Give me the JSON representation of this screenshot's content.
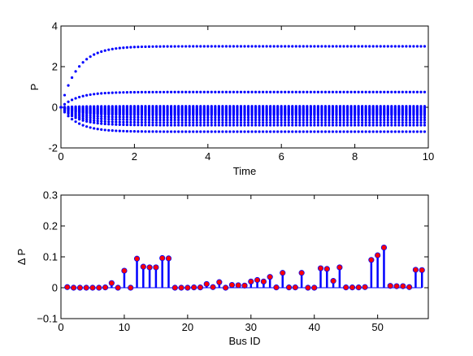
{
  "chart_data": [
    {
      "type": "scatter",
      "title": "",
      "xlabel": "Time",
      "ylabel": "P",
      "xlim": [
        0,
        10
      ],
      "ylim": [
        -2,
        4
      ],
      "xticks": [
        0,
        2,
        4,
        6,
        8,
        10
      ],
      "yticks": [
        -2,
        0,
        2,
        4
      ],
      "grid": false,
      "marker_color": "#0000ff",
      "time_samples": {
        "start": 0,
        "stop": 9.9,
        "step": 0.1
      },
      "tau": 0.45,
      "series": [
        {
          "final": 3.0
        },
        {
          "final": 0.75
        },
        {
          "final": 0.05
        },
        {
          "final": -0.02
        },
        {
          "final": -0.08
        },
        {
          "final": -0.13
        },
        {
          "final": -0.18
        },
        {
          "final": -0.23
        },
        {
          "final": -0.28
        },
        {
          "final": -0.33
        },
        {
          "final": -0.38
        },
        {
          "final": -0.5
        },
        {
          "final": -0.62
        },
        {
          "final": -0.75
        },
        {
          "final": -0.88
        },
        {
          "final": -1.2
        }
      ]
    },
    {
      "type": "stem",
      "title": "",
      "xlabel": "Bus ID",
      "ylabel": "Δ P",
      "xlim": [
        0,
        58
      ],
      "ylim": [
        -0.1,
        0.3
      ],
      "xticks": [
        0,
        10,
        20,
        30,
        40,
        50
      ],
      "yticks": [
        -0.1,
        0,
        0.1,
        0.2,
        0.3
      ],
      "yticklabels": [
        "−0.1",
        "0",
        "0.1",
        "0.2",
        "0.3"
      ],
      "grid": false,
      "stem_color": "#0000ff",
      "marker_color": "#ff0000",
      "x": [
        1,
        2,
        3,
        4,
        5,
        6,
        7,
        8,
        9,
        10,
        11,
        12,
        13,
        14,
        15,
        16,
        17,
        18,
        19,
        20,
        21,
        22,
        23,
        24,
        25,
        26,
        27,
        28,
        29,
        30,
        31,
        32,
        33,
        34,
        35,
        36,
        37,
        38,
        39,
        40,
        41,
        42,
        43,
        44,
        45,
        46,
        47,
        48,
        49,
        50,
        51,
        52,
        53,
        54,
        55,
        56,
        57
      ],
      "values": [
        0.002,
        0.0,
        0.0,
        0.0,
        0.0,
        0.0,
        0.001,
        0.015,
        0.0,
        0.055,
        0.0,
        0.094,
        0.068,
        0.066,
        0.066,
        0.096,
        0.095,
        0.0,
        0.0,
        0.0,
        0.001,
        0.001,
        0.012,
        0.002,
        0.018,
        0.0,
        0.009,
        0.008,
        0.007,
        0.02,
        0.025,
        0.02,
        0.035,
        0.001,
        0.048,
        0.001,
        0.001,
        0.048,
        0.0,
        0.0,
        0.063,
        0.061,
        0.022,
        0.066,
        0.001,
        0.001,
        0.001,
        0.002,
        0.09,
        0.105,
        0.13,
        0.006,
        0.005,
        0.005,
        0.002,
        0.058,
        0.057
      ]
    }
  ]
}
